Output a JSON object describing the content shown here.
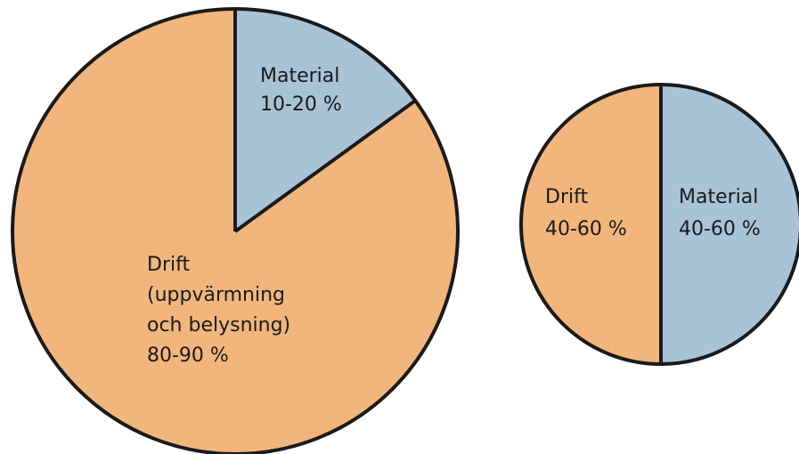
{
  "colors": {
    "drift": "#f2b67c",
    "material": "#a8c3d6",
    "outline": "#1a1a1a"
  },
  "chart_data": [
    {
      "type": "pie",
      "title": "",
      "slices": [
        {
          "key": "material",
          "label_lines": [
            "Material",
            "10-20 %"
          ],
          "value": 15,
          "color": "#a8c3d6"
        },
        {
          "key": "drift",
          "label_lines": [
            "Drift",
            "(uppvärmning",
            "och belysning)",
            "80-90 %"
          ],
          "value": 85,
          "color": "#f2b67c"
        }
      ]
    },
    {
      "type": "pie",
      "title": "",
      "slices": [
        {
          "key": "material",
          "label_lines": [
            "Material",
            "40-60 %"
          ],
          "value": 50,
          "color": "#a8c3d6"
        },
        {
          "key": "drift",
          "label_lines": [
            "Drift",
            "40-60 %"
          ],
          "value": 50,
          "color": "#f2b67c"
        }
      ]
    }
  ]
}
